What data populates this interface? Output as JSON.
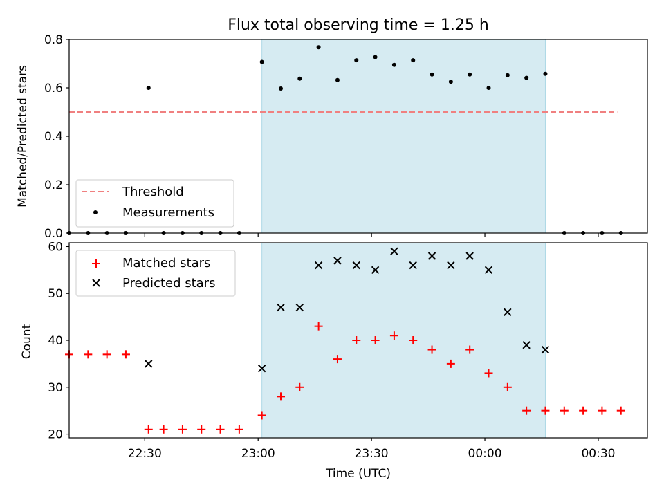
{
  "title": "Flux total observing time = 1.25 h",
  "chart_data": [
    {
      "type": "scatter",
      "panel": "top",
      "ylabel": "Matched/Predicted stars",
      "ylim": [
        0,
        0.8
      ],
      "yticks": [
        0.0,
        0.2,
        0.4,
        0.6,
        0.8
      ],
      "ytick_labels": [
        "0.0",
        "0.2",
        "0.4",
        "0.6",
        "0.8"
      ],
      "xlim": [
        "22:10",
        "00:43"
      ],
      "xticks": [
        "22:30",
        "23:00",
        "23:30",
        "00:00",
        "00:30"
      ],
      "shaded_span": {
        "start": "23:01",
        "end": "00:16",
        "color": "#add8e6"
      },
      "threshold": {
        "name": "Threshold",
        "value": 0.5,
        "x": [
          "22:10",
          "00:35"
        ],
        "color": "#f08080"
      },
      "series": [
        {
          "name": "Measurements",
          "color": "#000000",
          "marker": "dot",
          "x": [
            "22:10",
            "22:15",
            "22:20",
            "22:25",
            "22:31",
            "22:35",
            "22:40",
            "22:45",
            "22:50",
            "22:55",
            "23:01",
            "23:06",
            "23:11",
            "23:16",
            "23:21",
            "23:26",
            "23:31",
            "23:36",
            "23:41",
            "23:46",
            "23:51",
            "23:56",
            "00:01",
            "00:06",
            "00:11",
            "00:16",
            "00:21",
            "00:26",
            "00:31",
            "00:36"
          ],
          "values": [
            0.0,
            0.0,
            0.0,
            0.0,
            0.6,
            0.0,
            0.0,
            0.0,
            0.0,
            0.0,
            0.707,
            0.597,
            0.638,
            0.768,
            0.632,
            0.714,
            0.727,
            0.695,
            0.714,
            0.655,
            0.625,
            0.655,
            0.6,
            0.652,
            0.641,
            0.658,
            0.0,
            0.0,
            0.0,
            0.0
          ]
        }
      ],
      "legend": {
        "placement": "lower-left",
        "entries": [
          "Threshold",
          "Measurements"
        ]
      }
    },
    {
      "type": "scatter",
      "panel": "bottom",
      "ylabel": "Count",
      "xlabel": "Time (UTC)",
      "ylim": [
        19.2,
        60.8
      ],
      "yticks": [
        20,
        30,
        40,
        50,
        60
      ],
      "ytick_labels": [
        "20",
        "30",
        "40",
        "50",
        "60"
      ],
      "xlim": [
        "22:10",
        "00:43"
      ],
      "xticks": [
        "22:30",
        "23:00",
        "23:30",
        "00:00",
        "00:30"
      ],
      "xtick_labels": [
        "22:30",
        "23:00",
        "23:30",
        "00:00",
        "00:30"
      ],
      "shaded_span": {
        "start": "23:01",
        "end": "00:16",
        "color": "#add8e6"
      },
      "series": [
        {
          "name": "Matched stars",
          "color": "#ff0000",
          "marker": "plus",
          "x": [
            "22:10",
            "22:15",
            "22:20",
            "22:25",
            "22:31",
            "22:35",
            "22:40",
            "22:45",
            "22:50",
            "22:55",
            "23:01",
            "23:06",
            "23:11",
            "23:16",
            "23:21",
            "23:26",
            "23:31",
            "23:36",
            "23:41",
            "23:46",
            "23:51",
            "23:56",
            "00:01",
            "00:06",
            "00:11",
            "00:16",
            "00:21",
            "00:26",
            "00:31",
            "00:36"
          ],
          "values": [
            37,
            37,
            37,
            37,
            21,
            21,
            21,
            21,
            21,
            21,
            24,
            28,
            30,
            43,
            36,
            40,
            40,
            41,
            40,
            38,
            35,
            38,
            33,
            30,
            25,
            25,
            25,
            25,
            25,
            25
          ]
        },
        {
          "name": "Predicted stars",
          "color": "#000000",
          "marker": "x",
          "x": [
            "22:31",
            "23:01",
            "23:06",
            "23:11",
            "23:16",
            "23:21",
            "23:26",
            "23:31",
            "23:36",
            "23:41",
            "23:46",
            "23:51",
            "23:56",
            "00:01",
            "00:06",
            "00:11",
            "00:16"
          ],
          "values": [
            35,
            34,
            47,
            47,
            56,
            57,
            56,
            55,
            59,
            56,
            58,
            56,
            58,
            55,
            46,
            39,
            38
          ]
        }
      ],
      "legend": {
        "placement": "upper-left",
        "entries": [
          "Matched stars",
          "Predicted stars"
        ]
      }
    }
  ]
}
